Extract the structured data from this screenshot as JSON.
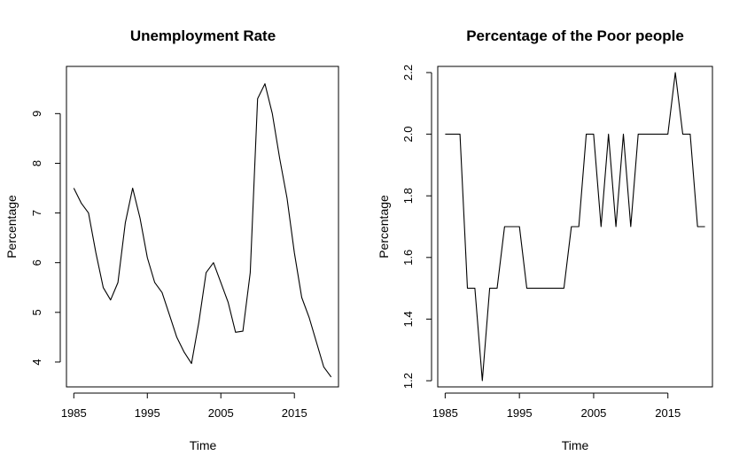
{
  "chart_data": [
    {
      "type": "line",
      "title": "Unemployment Rate",
      "xlabel": "Time",
      "ylabel": "Percentage",
      "xlim": [
        1984,
        2021
      ],
      "ylim": [
        3.5,
        9.95
      ],
      "x_ticks": [
        1985,
        1995,
        2005,
        2015
      ],
      "x_tick_labels": [
        "1985",
        "1995",
        "2005",
        "2015"
      ],
      "y_ticks": [
        4,
        5,
        6,
        7,
        8,
        9
      ],
      "y_tick_labels": [
        "4",
        "5",
        "6",
        "7",
        "8",
        "9"
      ],
      "grid": false,
      "series": [
        {
          "color": "#000000",
          "x": [
            1985,
            1986,
            1987,
            1988,
            1989,
            1990,
            1991,
            1992,
            1993,
            1994,
            1995,
            1996,
            1997,
            1998,
            1999,
            2000,
            2001,
            2002,
            2003,
            2004,
            2005,
            2006,
            2007,
            2008,
            2009,
            2010,
            2011,
            2012,
            2013,
            2014,
            2015,
            2016,
            2017,
            2018,
            2019,
            2020
          ],
          "y": [
            7.5,
            7.2,
            7.0,
            6.2,
            5.5,
            5.25,
            5.6,
            6.8,
            7.5,
            6.9,
            6.1,
            5.6,
            5.4,
            4.95,
            4.5,
            4.2,
            3.97,
            4.8,
            5.8,
            6.0,
            5.6,
            5.2,
            4.6,
            4.62,
            5.8,
            9.3,
            9.6,
            9.0,
            8.1,
            7.3,
            6.2,
            5.3,
            4.9,
            4.4,
            3.9,
            3.7
          ]
        }
      ]
    },
    {
      "type": "line",
      "title": "Percentage of the Poor people",
      "xlabel": "Time",
      "ylabel": "Percentage",
      "xlim": [
        1984,
        2021
      ],
      "ylim": [
        1.18,
        2.22
      ],
      "x_ticks": [
        1985,
        1995,
        2005,
        2015
      ],
      "x_tick_labels": [
        "1985",
        "1995",
        "2005",
        "2015"
      ],
      "y_ticks": [
        1.2,
        1.4,
        1.6,
        1.8,
        2.0,
        2.2
      ],
      "y_tick_labels": [
        "1.2",
        "1.4",
        "1.6",
        "1.8",
        "2.0",
        "2.2"
      ],
      "grid": false,
      "series": [
        {
          "color": "#000000",
          "x": [
            1985,
            1986,
            1987,
            1988,
            1989,
            1990,
            1991,
            1992,
            1993,
            1994,
            1995,
            1996,
            1997,
            1998,
            1999,
            2000,
            2001,
            2002,
            2003,
            2004,
            2005,
            2006,
            2007,
            2008,
            2009,
            2010,
            2011,
            2012,
            2013,
            2014,
            2015,
            2016,
            2017,
            2018,
            2019,
            2020
          ],
          "y": [
            2.0,
            2.0,
            2.0,
            1.5,
            1.5,
            1.2,
            1.5,
            1.5,
            1.7,
            1.7,
            1.7,
            1.5,
            1.5,
            1.5,
            1.5,
            1.5,
            1.5,
            1.7,
            1.7,
            2.0,
            2.0,
            1.7,
            2.0,
            1.7,
            2.0,
            1.7,
            2.0,
            2.0,
            2.0,
            2.0,
            2.0,
            2.2,
            2.0,
            2.0,
            1.7,
            1.7
          ]
        }
      ]
    }
  ]
}
